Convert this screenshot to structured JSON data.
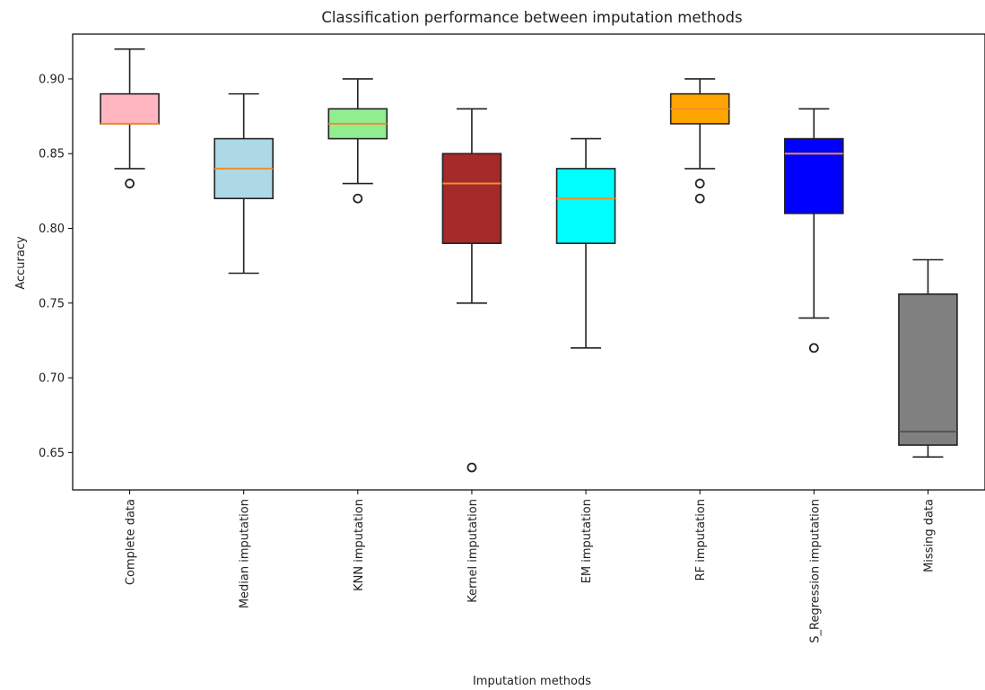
{
  "chart_data": {
    "type": "boxplot",
    "title": "Classification performance between imputation methods",
    "xlabel": "Imputation methods",
    "ylabel": "Accuracy",
    "ylim": [
      0.625,
      0.93
    ],
    "yticks": [
      0.65,
      0.7,
      0.75,
      0.8,
      0.85,
      0.9
    ],
    "ytick_labels": [
      "0.65",
      "0.70",
      "0.75",
      "0.80",
      "0.85",
      "0.90"
    ],
    "median_color": "#f28e2b",
    "grid": false,
    "legend": "none",
    "boxes": [
      {
        "label": "Complete data",
        "color": "#ffb6c1",
        "whisker_low": 0.84,
        "q1": 0.87,
        "median": 0.87,
        "q3": 0.89,
        "whisker_high": 0.92,
        "outliers": [
          0.83
        ]
      },
      {
        "label": "Median imputation",
        "color": "#add8e6",
        "whisker_low": 0.77,
        "q1": 0.82,
        "median": 0.84,
        "q3": 0.86,
        "whisker_high": 0.89,
        "outliers": []
      },
      {
        "label": "KNN imputation",
        "color": "#90ee90",
        "whisker_low": 0.83,
        "q1": 0.86,
        "median": 0.87,
        "q3": 0.88,
        "whisker_high": 0.9,
        "outliers": [
          0.82
        ]
      },
      {
        "label": "Kernel imputation",
        "color": "#a52a2a",
        "whisker_low": 0.75,
        "q1": 0.79,
        "median": 0.83,
        "q3": 0.85,
        "whisker_high": 0.88,
        "outliers": [
          0.64
        ]
      },
      {
        "label": "EM imputation",
        "color": "#00ffff",
        "whisker_low": 0.72,
        "q1": 0.79,
        "median": 0.82,
        "q3": 0.84,
        "whisker_high": 0.86,
        "outliers": []
      },
      {
        "label": "RF imputation",
        "color": "#ffa500",
        "whisker_low": 0.84,
        "q1": 0.87,
        "median": 0.88,
        "q3": 0.89,
        "whisker_high": 0.9,
        "outliers": [
          0.83,
          0.82
        ]
      },
      {
        "label": "S_Regression imputation",
        "color": "#0000ff",
        "whisker_low": 0.74,
        "q1": 0.81,
        "median": 0.85,
        "q3": 0.86,
        "whisker_high": 0.88,
        "outliers": [
          0.72
        ]
      },
      {
        "label": "Missing data",
        "color": "#808080",
        "whisker_low": 0.647,
        "q1": 0.655,
        "median": 0.664,
        "q3": 0.756,
        "whisker_high": 0.779,
        "outliers": []
      }
    ]
  }
}
